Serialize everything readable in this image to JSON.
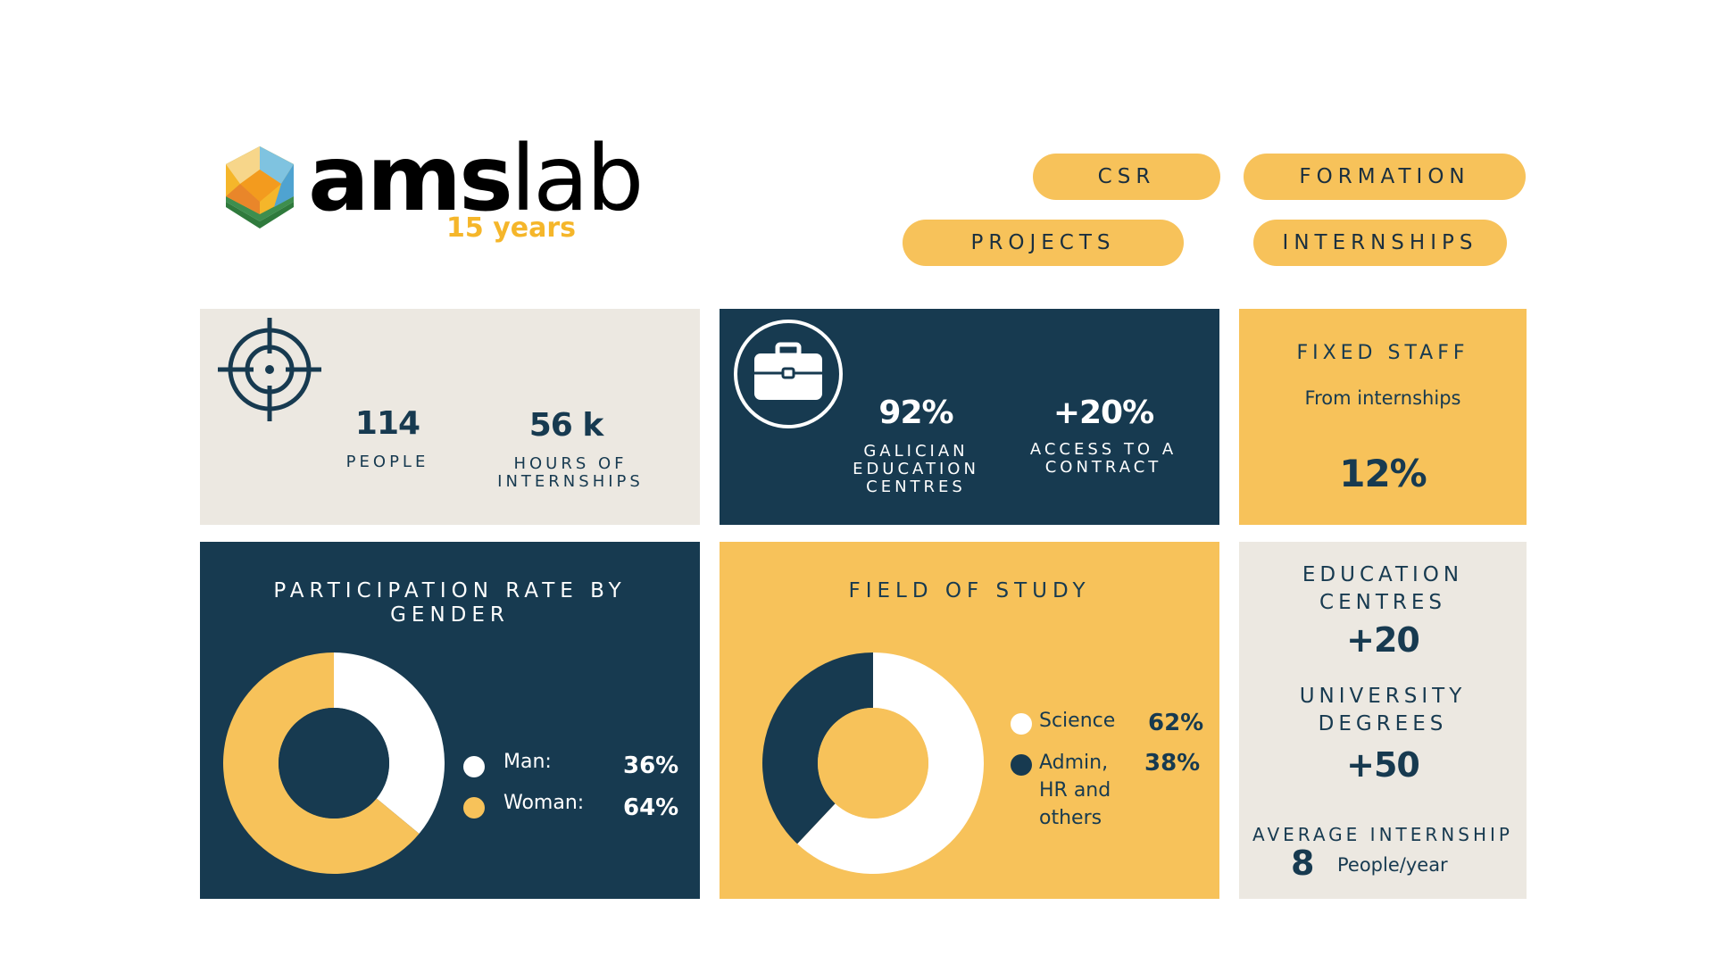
{
  "logo": {
    "wordmark_bold": "ams",
    "wordmark_light": "lab",
    "years": "15 years"
  },
  "nav": {
    "csr": "CSR",
    "formation": "FORMATION",
    "projects": "PROJECTS",
    "internships": "INTERNSHIPS"
  },
  "stats1": {
    "icon": "target-icon",
    "people_value": "114",
    "people_label": "PEOPLE",
    "hours_value": "56 k",
    "hours_label": "HOURS OF INTERNSHIPS"
  },
  "stats2": {
    "icon": "briefcase-icon",
    "galician_value": "92%",
    "galician_label": "GALICIAN EDUCATION CENTRES",
    "contract_value": "+20%",
    "contract_label": "ACCESS TO A CONTRACT"
  },
  "fixed_staff": {
    "title": "FIXED STAFF",
    "subtitle": "From internships",
    "value": "12%"
  },
  "side_stats": {
    "education_label": "EDUCATION CENTRES",
    "education_value": "+20",
    "university_label": "UNIVERSITY DEGREES",
    "university_value": "+50",
    "average_label": "AVERAGE INTERNSHIP",
    "average_value": "8",
    "average_unit": "People/year"
  },
  "colors": {
    "navy": "#173A50",
    "yellow": "#F7C25A",
    "light": "#ECE8E1",
    "white": "#FFFFFF"
  },
  "chart_data": [
    {
      "type": "pie",
      "title": "PARTICIPATION RATE BY GENDER",
      "donut": true,
      "series": [
        {
          "name": "Man:",
          "value": 36,
          "label": "36%",
          "color": "#FFFFFF"
        },
        {
          "name": "Woman:",
          "value": 64,
          "label": "64%",
          "color": "#F7C25A"
        }
      ]
    },
    {
      "type": "pie",
      "title": "FIELD OF STUDY",
      "donut": true,
      "series": [
        {
          "name": "Science",
          "value": 62,
          "label": "62%",
          "color": "#FFFFFF"
        },
        {
          "name": "Admin, HR and others",
          "value": 38,
          "label": "38%",
          "color": "#173A50"
        }
      ]
    }
  ]
}
